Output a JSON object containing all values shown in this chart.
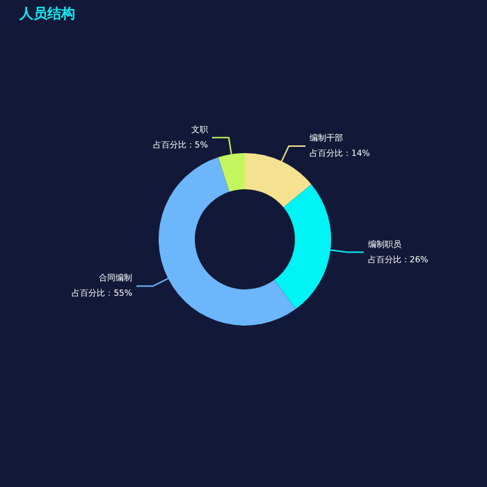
{
  "chart_data": {
    "type": "donut",
    "title": "人员结构",
    "categories": [
      "编制干部",
      "编制职员",
      "合同编制",
      "文职"
    ],
    "values": [
      14,
      26,
      55,
      5
    ],
    "value_labels": [
      "占百分比：14%",
      "占百分比：26%",
      "占百分比：55%",
      "占百分比：5%"
    ],
    "colors": [
      "#f5e290",
      "#00f3f5",
      "#6cb6fb",
      "#c4f75e"
    ]
  }
}
